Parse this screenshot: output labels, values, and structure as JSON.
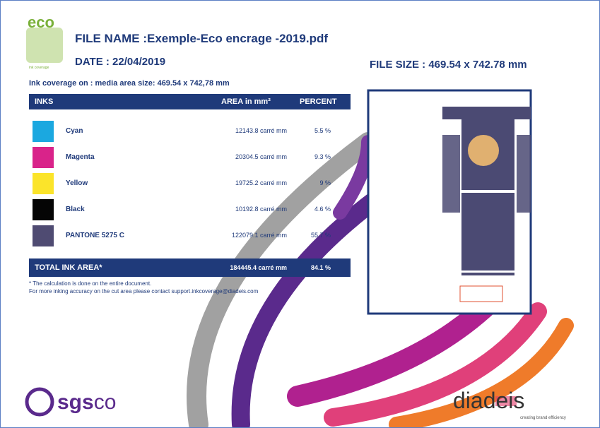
{
  "logo": {
    "text": "eco",
    "sub": "ink coverage"
  },
  "header": {
    "file_name": "FILE NAME :Exemple-Eco encrage -2019.pdf",
    "date": "DATE : 22/04/2019",
    "file_size": "FILE SIZE : 469.54 x 742.78 mm",
    "coverage": "Ink coverage on : media area size: 469.54 x 742,78 mm"
  },
  "table": {
    "columns": [
      "INKS",
      "AREA in mm²",
      "PERCENT"
    ],
    "rows": [
      {
        "name": "Cyan",
        "color": "#1ba8e0",
        "area": "12143.8 carré mm",
        "percent": "5.5 %"
      },
      {
        "name": "Magenta",
        "color": "#d9238a",
        "area": "20304.5 carré mm",
        "percent": "9.3 %"
      },
      {
        "name": "Yellow",
        "color": "#fbe42a",
        "area": "19725.2 carré mm",
        "percent": "9 %"
      },
      {
        "name": "Black",
        "color": "#050505",
        "area": "10192.8 carré mm",
        "percent": "4.6 %"
      },
      {
        "name": "PANTONE 5275 C",
        "color": "#4f4b72",
        "area": "122079.1 carré mm",
        "percent": "55.7 %"
      }
    ],
    "total": {
      "label": "TOTAL INK AREA*",
      "area": "184445.4 carré mm",
      "percent": "84.1 %"
    }
  },
  "notes": [
    "* The calculation is done on the entire document.",
    "For more inking accuracy on the cut area please contact support.inkcoverage@diadeis.com"
  ],
  "footer": {
    "left_a": "sgs",
    "left_b": "co",
    "right": "diadeis",
    "tagline": "creating brand efficiency"
  }
}
